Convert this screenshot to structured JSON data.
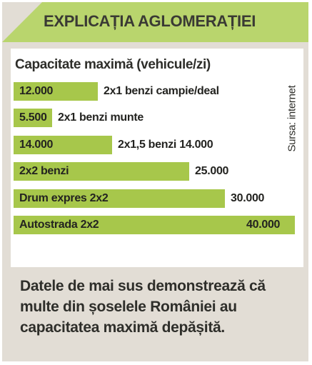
{
  "header": {
    "title": "EXPLICAȚIA AGLOMERAȚIEI"
  },
  "chart_data": {
    "type": "bar",
    "orientation": "horizontal",
    "title": "Capacitate maximă (vehicule/zi)",
    "source": "Sursa: internet",
    "bars": [
      {
        "inside_label": "12.000",
        "outside_label": "2x1 benzi campie/deal",
        "value": 12000
      },
      {
        "inside_label": "5.500",
        "outside_label": "2x1 benzi munte",
        "value": 5500
      },
      {
        "inside_label": "14.000",
        "outside_label": "2x1,5 benzi 14.000",
        "value": 14000
      },
      {
        "inside_label": "2x2 benzi",
        "outside_label": "25.000",
        "value": 25000
      },
      {
        "inside_label": "Drum expres 2x2",
        "outside_label": "30.000",
        "value": 30000
      },
      {
        "inside_label": "Autostrada 2x2",
        "outside_label": "40.000",
        "value": 40000
      }
    ],
    "bar_color": "#a7c74b",
    "header_color": "#b9d56d"
  },
  "footer": {
    "text": "Datele de mai sus demonstrează că multe din șoselele României au capacitatea maximă depășită."
  }
}
